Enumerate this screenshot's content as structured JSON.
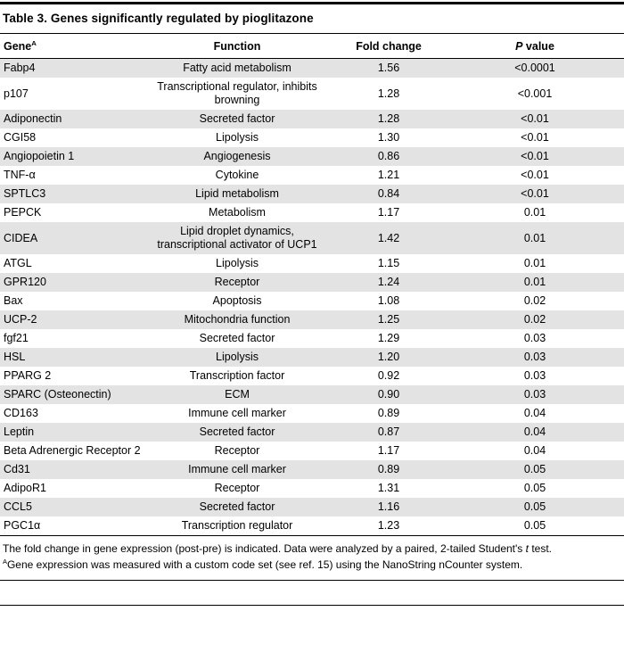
{
  "title": "Table 3. Genes significantly regulated by pioglitazone",
  "header": {
    "gene": "Gene",
    "gene_sup": "A",
    "function": "Function",
    "fold": "Fold change",
    "p_italic": "P",
    "p_rest": " value"
  },
  "table": {
    "rows": [
      {
        "gene": "Fabp4",
        "function": "Fatty acid metabolism",
        "fold": "1.56",
        "p": "<0.0001"
      },
      {
        "gene": "p107",
        "function": "Transcriptional regulator, inhibits browning",
        "fold": "1.28",
        "p": "<0.001"
      },
      {
        "gene": "Adiponectin",
        "function": "Secreted factor",
        "fold": "1.28",
        "p": "<0.01"
      },
      {
        "gene": "CGI58",
        "function": "Lipolysis",
        "fold": "1.30",
        "p": "<0.01"
      },
      {
        "gene": "Angiopoietin 1",
        "function": "Angiogenesis",
        "fold": "0.86",
        "p": "<0.01"
      },
      {
        "gene": "TNF-α",
        "function": "Cytokine",
        "fold": "1.21",
        "p": "<0.01"
      },
      {
        "gene": "SPTLC3",
        "function": "Lipid metabolism",
        "fold": "0.84",
        "p": "<0.01"
      },
      {
        "gene": "PEPCK",
        "function": "Metabolism",
        "fold": "1.17",
        "p": "0.01"
      },
      {
        "gene": "CIDEA",
        "function": "Lipid droplet dynamics, transcriptional activator of UCP1",
        "fold": "1.42",
        "p": "0.01"
      },
      {
        "gene": "ATGL",
        "function": "Lipolysis",
        "fold": "1.15",
        "p": "0.01"
      },
      {
        "gene": "GPR120",
        "function": "Receptor",
        "fold": "1.24",
        "p": "0.01"
      },
      {
        "gene": "Bax",
        "function": "Apoptosis",
        "fold": "1.08",
        "p": "0.02"
      },
      {
        "gene": "UCP-2",
        "function": "Mitochondria function",
        "fold": "1.25",
        "p": "0.02"
      },
      {
        "gene": "fgf21",
        "function": "Secreted factor",
        "fold": "1.29",
        "p": "0.03"
      },
      {
        "gene": "HSL",
        "function": "Lipolysis",
        "fold": "1.20",
        "p": "0.03"
      },
      {
        "gene": "PPARG 2",
        "function": "Transcription factor",
        "fold": "0.92",
        "p": "0.03"
      },
      {
        "gene": "SPARC (Osteonectin)",
        "function": "ECM",
        "fold": "0.90",
        "p": "0.03"
      },
      {
        "gene": "CD163",
        "function": "Immune cell marker",
        "fold": "0.89",
        "p": "0.04"
      },
      {
        "gene": "Leptin",
        "function": "Secreted factor",
        "fold": "0.87",
        "p": "0.04"
      },
      {
        "gene": "Beta Adrenergic Receptor 2",
        "function": "Receptor",
        "fold": "1.17",
        "p": "0.04"
      },
      {
        "gene": "Cd31",
        "function": "Immune cell marker",
        "fold": "0.89",
        "p": "0.05"
      },
      {
        "gene": "AdipoR1",
        "function": "Receptor",
        "fold": "1.31",
        "p": "0.05"
      },
      {
        "gene": "CCL5",
        "function": "Secreted factor",
        "fold": "1.16",
        "p": "0.05"
      },
      {
        "gene": "PGC1α",
        "function": "Transcription regulator",
        "fold": "1.23",
        "p": "0.05"
      }
    ]
  },
  "footnotes": {
    "line1_pre": "The fold change in gene expression (post-pre) is indicated. Data were analyzed by a paired, 2-tailed Student's ",
    "line1_italic": "t",
    "line1_post": " test.",
    "line2_sup": "A",
    "line2_text": "Gene expression was measured with a custom code set (see ref. 15) using the NanoString nCounter system."
  },
  "colors": {
    "row_shade": "#e3e3e3",
    "rule": "#000000"
  }
}
